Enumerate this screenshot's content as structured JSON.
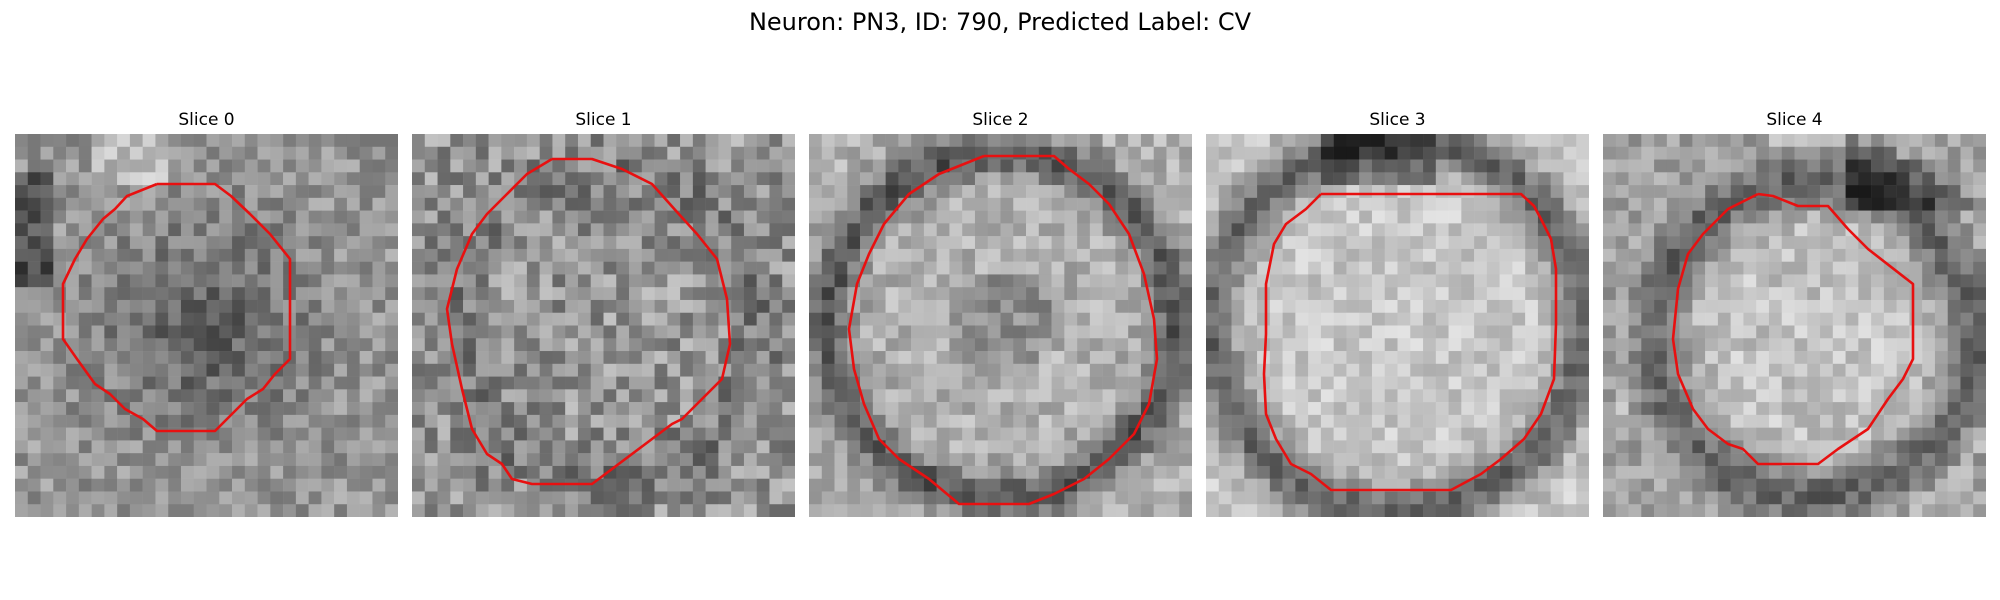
{
  "figure": {
    "title": "Neuron: PN3, ID: 790, Predicted Label: CV"
  },
  "overlay_color": "#e81010",
  "slices": [
    {
      "label": "Slice 0",
      "pattern": "dark-center"
    },
    {
      "label": "Slice 1",
      "pattern": "textured-ring"
    },
    {
      "label": "Slice 2",
      "pattern": "dark-ring"
    },
    {
      "label": "Slice 3",
      "pattern": "bright-core"
    },
    {
      "label": "Slice 4",
      "pattern": "bright-core-small"
    }
  ]
}
